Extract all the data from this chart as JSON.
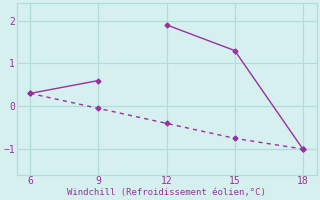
{
  "line1_x": [
    6,
    9
  ],
  "line1_y": [
    0.3,
    0.6
  ],
  "line2_x": [
    12,
    15,
    18
  ],
  "line2_y": [
    1.9,
    1.3,
    -1.0
  ],
  "line3_x": [
    6,
    9,
    12,
    15,
    18
  ],
  "line3_y": [
    0.3,
    -0.05,
    -0.4,
    -0.75,
    -1.0
  ],
  "color": "#9B30A0",
  "bg_color": "#d5f0ee",
  "grid_color": "#b0ddd8",
  "xlabel": "Windchill (Refroidissement éolien,°C)",
  "xlabel_color": "#9B30A0",
  "xticks": [
    6,
    9,
    12,
    15,
    18
  ],
  "yticks": [
    -1,
    0,
    1,
    2
  ],
  "xlim": [
    5.4,
    18.6
  ],
  "ylim": [
    -1.6,
    2.4
  ],
  "tick_color": "#9B30A0",
  "marker": "D",
  "markersize": 2.5,
  "linewidth": 1.0,
  "linestyle_solid": "-",
  "linestyle_dash": "--"
}
